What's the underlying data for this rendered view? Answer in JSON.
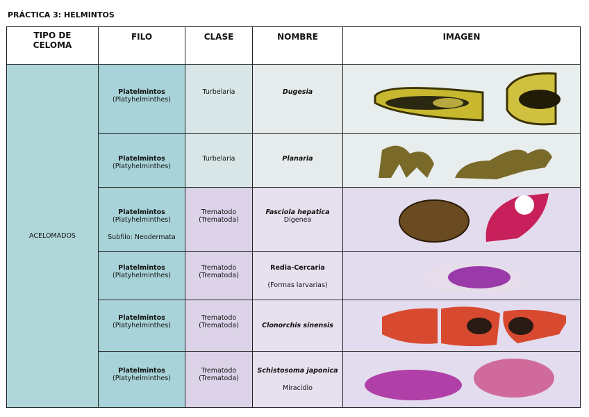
{
  "title": "PRÁCTICA 3: HELMINTOS",
  "table": {
    "headers": [
      "TIPO DE CELOMA",
      "FILO",
      "CLASE",
      "NOMBRE",
      "IMAGEN"
    ],
    "celoma": "ACELOMADOS",
    "rows": [
      {
        "filo": "Platelmintos",
        "filo_sci": "(Platyhelminthes)",
        "clase": "Turbelaria",
        "nombre": "Dugesia"
      },
      {
        "filo": "Platelmintos",
        "filo_sci": "(Platyhelminthes)",
        "clase": "Turbelaria",
        "nombre": "Planaria"
      },
      {
        "filo": "Platelmintos",
        "filo_sci": "(Platyhelminthes)",
        "subfilo": "Subfilo: Neodermata",
        "clase": "Trematodo",
        "clase_sci": "(Trematoda)",
        "nombre": "Fasciola hepatica",
        "nombre_note": "Digenea"
      },
      {
        "filo": "Platelmintos",
        "filo_sci": "(Platyhelminthes)",
        "clase": "Trematodo",
        "clase_sci": "(Trematoda)",
        "nombre": "Redia-Cercaria",
        "nombre_note": "(Formas larvarias)"
      },
      {
        "filo": "Platelmintos",
        "filo_sci": "(Platyhelminthes)",
        "clase": "Trematodo",
        "clase_sci": "(Trematoda)",
        "nombre": "Clonorchis sinensis"
      },
      {
        "filo": "Platelmintos",
        "filo_sci": "(Platyhelminthes)",
        "clase": "Trematodo",
        "clase_sci": "(Trematoda)",
        "nombre": "Schistosoma japonica",
        "nombre_note": "Miracidio"
      }
    ]
  }
}
